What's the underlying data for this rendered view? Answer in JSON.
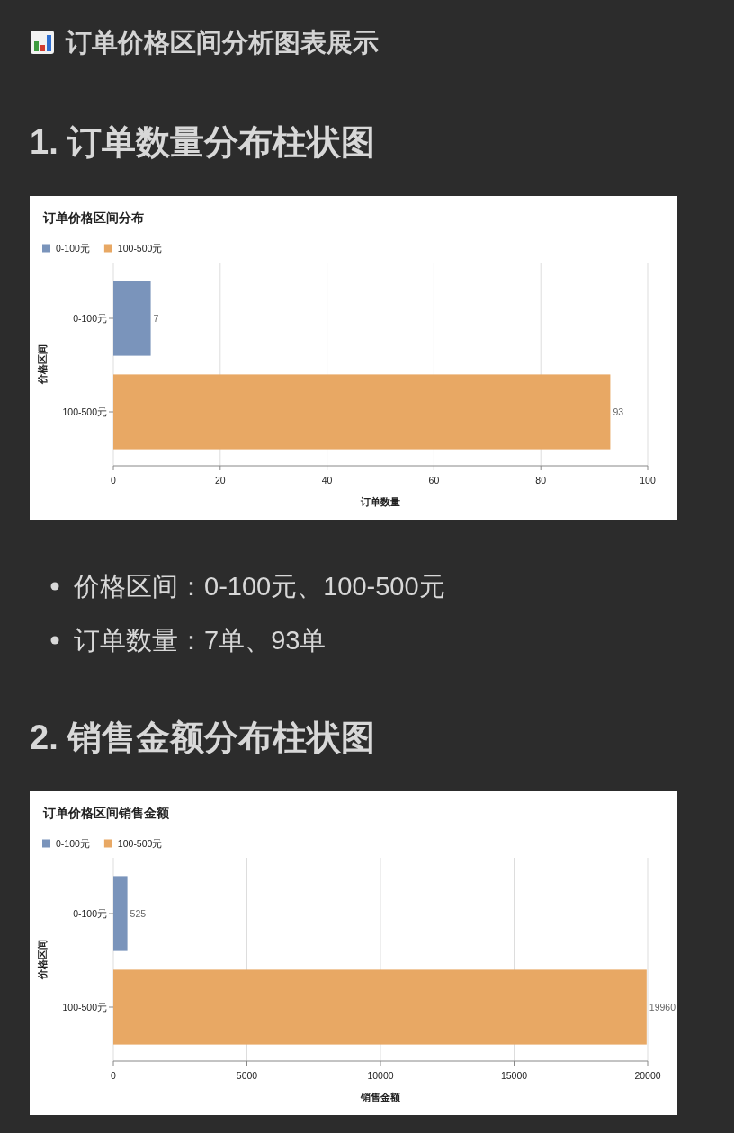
{
  "chart_data": [
    {
      "type": "bar",
      "orientation": "horizontal",
      "stacked": true,
      "title": "订单价格区间分布",
      "subtitle": "1. 订单数量分布柱状图",
      "xlabel": "订单数量",
      "ylabel": "价格区间",
      "categories": [
        "0-100元",
        "100-500元"
      ],
      "series": [
        {
          "name": "0-100元",
          "color": "#7a94bb",
          "values": [
            7,
            null
          ]
        },
        {
          "name": "100-500元",
          "color": "#e8a864",
          "values": [
            null,
            93
          ]
        }
      ],
      "xlim": [
        0,
        100
      ],
      "xticks": [
        0,
        20,
        40,
        60,
        80,
        100
      ],
      "grid": "x",
      "legend": "top left",
      "data_labels": true,
      "annotations": [
        "订单价格区间分析图表展示",
        "价格区间：0-100元、100-500元",
        "订单数量：7单、93单"
      ]
    },
    {
      "type": "bar",
      "orientation": "horizontal",
      "stacked": true,
      "title": "订单价格区间销售金额",
      "subtitle": "2. 销售金额分布柱状图",
      "xlabel": "销售金额",
      "ylabel": "价格区间",
      "categories": [
        "0-100元",
        "100-500元"
      ],
      "series": [
        {
          "name": "0-100元",
          "color": "#7a94bb",
          "values": [
            525,
            null
          ]
        },
        {
          "name": "100-500元",
          "color": "#e8a864",
          "values": [
            null,
            19960
          ]
        }
      ],
      "xlim": [
        0,
        20000
      ],
      "xticks": [
        0,
        5000,
        10000,
        15000,
        20000
      ],
      "grid": "x",
      "legend": "top left",
      "data_labels": true
    }
  ]
}
